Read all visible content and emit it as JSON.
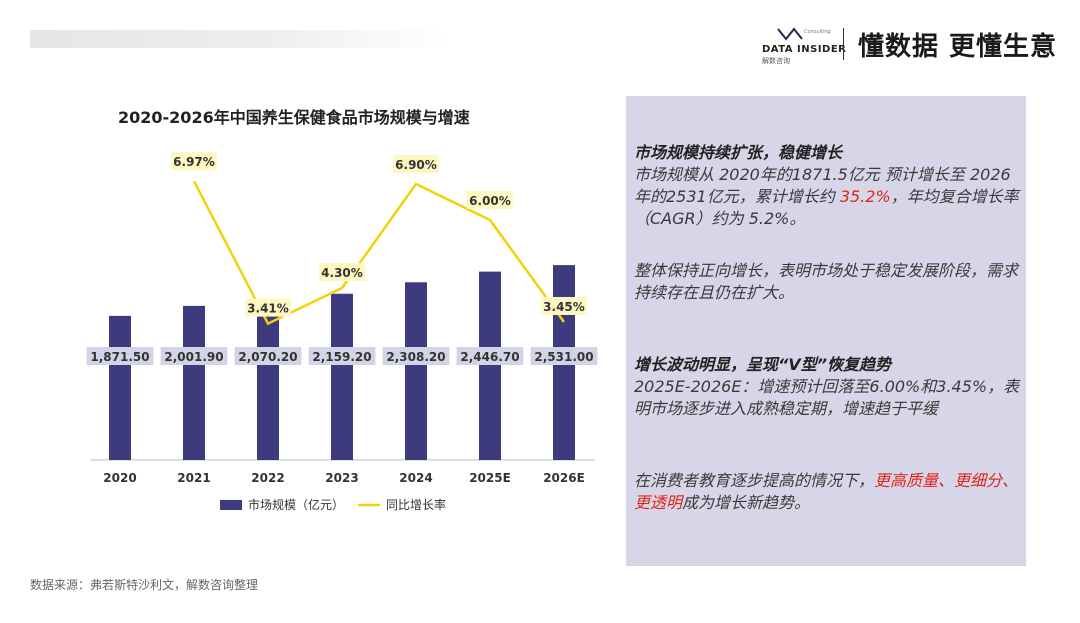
{
  "header": {
    "brand_name": "DATA INSIDER",
    "brand_sub": "解数咨询",
    "brand_small": "Consulting",
    "slogan": "懂数据 更懂生意"
  },
  "colors": {
    "bar": "#3d3a7e",
    "line": "#f2d20a",
    "panel_bg": "#d6d6e8",
    "highlight": "#e2231a"
  },
  "chart_data": {
    "type": "bar",
    "title": "2020-2026年中国养生保健食品市场规模与增速",
    "categories": [
      "2020",
      "2021",
      "2022",
      "2023",
      "2024",
      "2025E",
      "2026E"
    ],
    "series": [
      {
        "name": "市场规模（亿元）",
        "type": "bar",
        "values": [
          1871.5,
          2001.9,
          2070.2,
          2159.2,
          2308.2,
          2446.7,
          2531.0
        ],
        "labels": [
          "1,871.50",
          "2,001.90",
          "2,070.20",
          "2,159.20",
          "2,308.20",
          "2,446.70",
          "2,531.00"
        ]
      },
      {
        "name": "同比增长率",
        "type": "line",
        "values": [
          null,
          6.97,
          3.41,
          4.3,
          6.9,
          6.0,
          3.45
        ],
        "labels": [
          "",
          "6.97%",
          "3.41%",
          "4.30%",
          "6.90%",
          "6.00%",
          "3.45%"
        ]
      }
    ],
    "legend_position": "bottom",
    "grid": false
  },
  "panel": {
    "section1": {
      "heading": "市场规模持续扩张，稳健增长",
      "text_a": "市场规模从 2020年的1871.5亿元 预计增长至 2026年的2531亿元，累计增长约 ",
      "text_highlight": "35.2%",
      "text_b": "，年均复合增长率（CAGR）约为 5.2%。"
    },
    "section2": {
      "text": "整体保持正向增长，表明市场处于稳定发展阶段，需求持续存在且仍在扩大。"
    },
    "section3": {
      "heading": "增长波动明显，呈现“V型”恢复趋势",
      "text": "2025E-2026E：增速预计回落至6.00%和3.45%，表明市场逐步进入成熟稳定期，增速趋于平缓"
    },
    "section4": {
      "text_a": "在消费者教育逐步提高的情况下，",
      "text_highlight": "更高质量、更细分、更透明",
      "text_b": "成为增长新趋势。"
    }
  },
  "source": "数据来源：弗若斯特沙利文，解数咨询整理"
}
